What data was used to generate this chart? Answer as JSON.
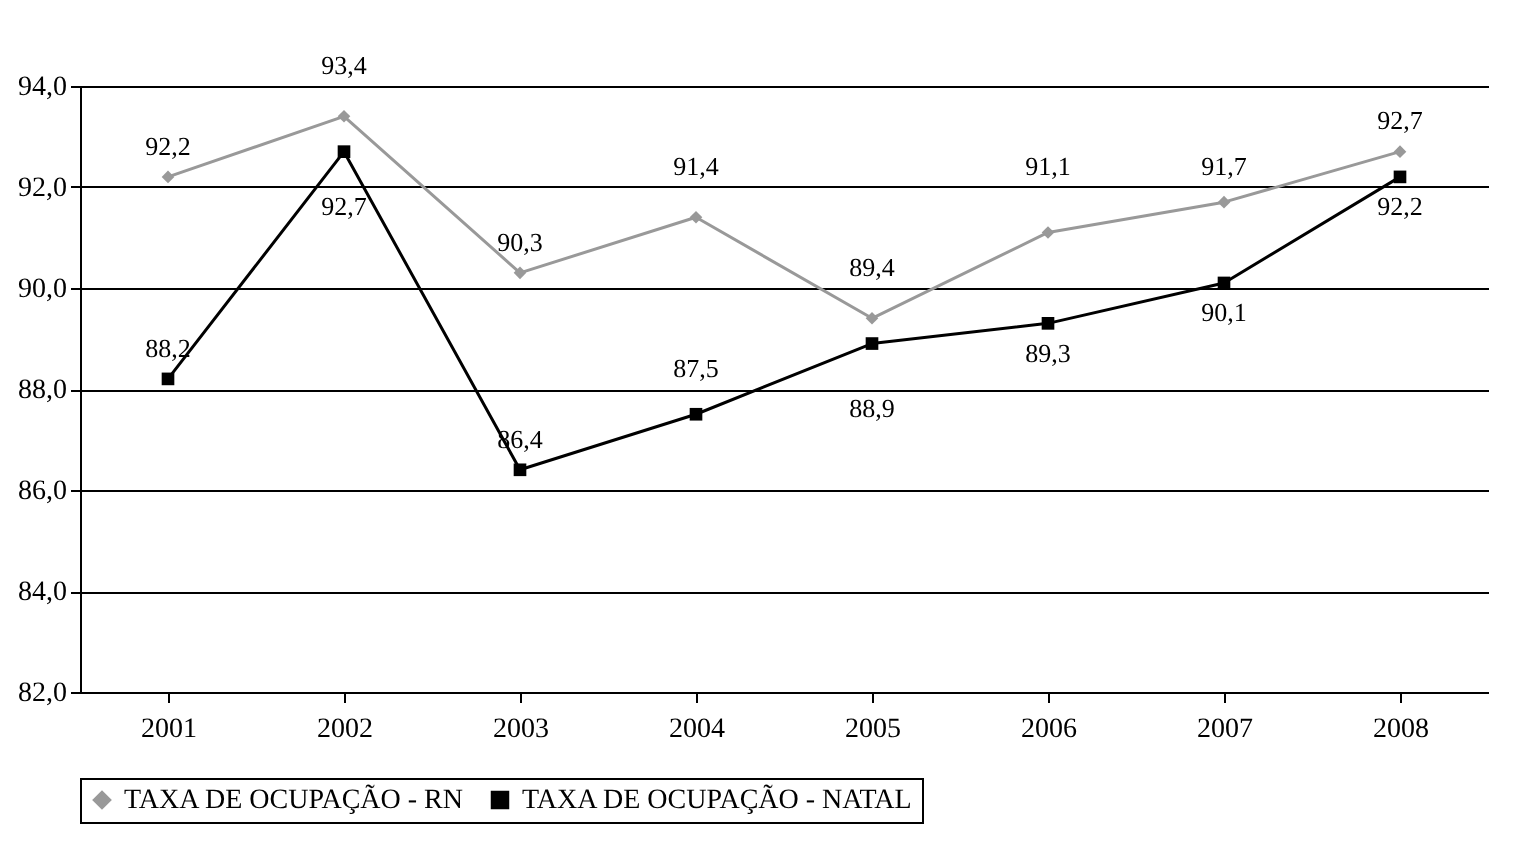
{
  "chart_data": {
    "type": "line",
    "categories": [
      "2001",
      "2002",
      "2003",
      "2004",
      "2005",
      "2006",
      "2007",
      "2008"
    ],
    "series": [
      {
        "name": "TAXA DE OCUPAÇÃO - RN",
        "color": "#999999",
        "marker": "diamond",
        "values": [
          92.2,
          93.4,
          90.3,
          91.4,
          89.4,
          91.1,
          91.7,
          92.7
        ],
        "value_labels": [
          "92,2",
          "93,4",
          "90,3",
          "91,4",
          "89,4",
          "91,1",
          "91,7",
          "92,7"
        ]
      },
      {
        "name": "TAXA DE OCUPAÇÃO - NATAL",
        "color": "#000000",
        "marker": "square",
        "values": [
          88.2,
          92.7,
          86.4,
          87.5,
          88.9,
          89.3,
          90.1,
          92.2
        ],
        "value_labels": [
          "88,2",
          "92,7",
          "86,4",
          "87,5",
          "88,9",
          "89,3",
          "90,1",
          "92,2"
        ]
      }
    ],
    "ylim": [
      82,
      94
    ],
    "yticks": [
      {
        "value": 82,
        "label": "82,0"
      },
      {
        "value": 84,
        "label": "84,0"
      },
      {
        "value": 86,
        "label": "86,0"
      },
      {
        "value": 88,
        "label": "88,0"
      },
      {
        "value": 90,
        "label": "90,0"
      },
      {
        "value": 92,
        "label": "92,0"
      },
      {
        "value": 94,
        "label": "94,0"
      }
    ],
    "grid": "y",
    "legend": "bottom"
  }
}
